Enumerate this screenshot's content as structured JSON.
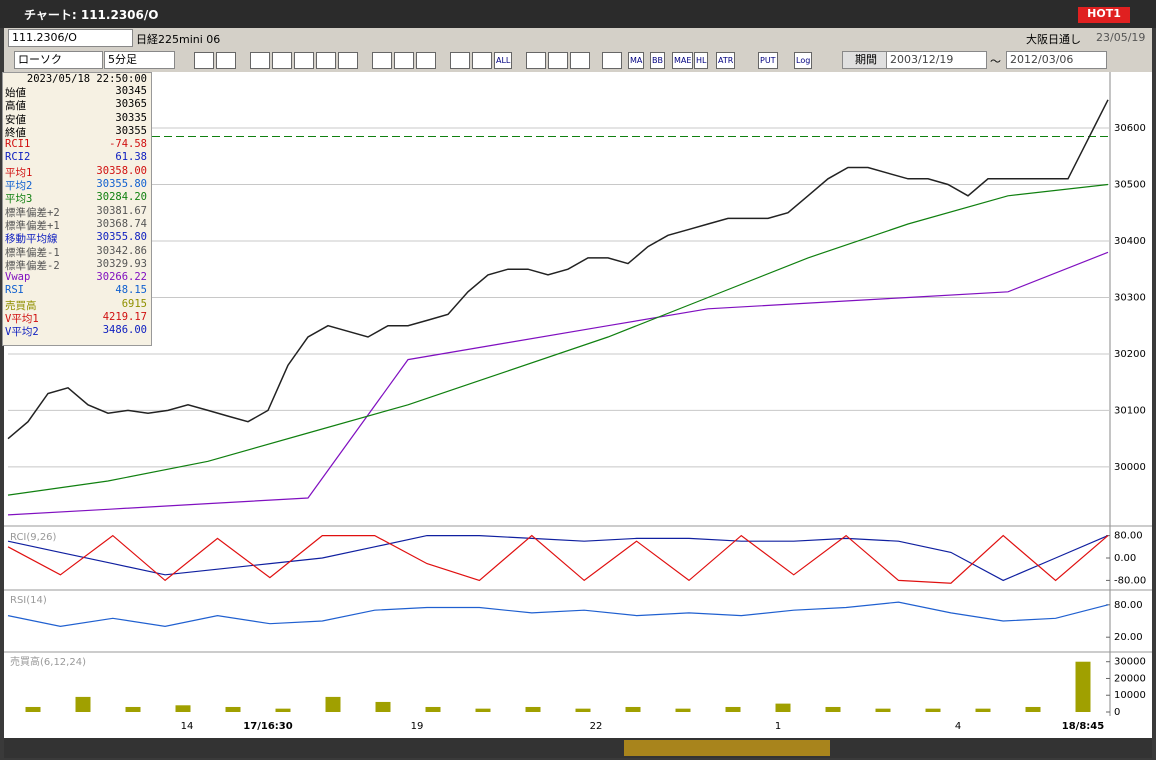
{
  "window": {
    "title": "チャート: 111.2306/O",
    "badge": "HOT1"
  },
  "toolbar": {
    "symbol": "111.2306/O",
    "name": "日経225mini 06",
    "market": "大阪日通し",
    "date": "23/05/19",
    "chart_type": "ローソク",
    "interval": "5分足",
    "icon_labels": [
      "ALL",
      "MA",
      "BB",
      "MAE",
      "HL",
      "ATR",
      "PUT",
      "Log"
    ],
    "period": "期間",
    "from": "2003/12/19",
    "tilde": "〜",
    "to": "2012/03/06"
  },
  "info": {
    "datetime": "2023/05/18  22:50:00",
    "rows": [
      {
        "label": "始値",
        "value": "30345",
        "color": "#000000"
      },
      {
        "label": "高値",
        "value": "30365",
        "color": "#000000"
      },
      {
        "label": "安値",
        "value": "30335",
        "color": "#000000"
      },
      {
        "label": "終値",
        "value": "30355",
        "color": "#000000"
      },
      {
        "label": "RCI1",
        "value": "-74.58",
        "color": "#d01010"
      },
      {
        "label": "RCI2",
        "value": "61.38",
        "color": "#1020c0"
      },
      {
        "label": "平均1",
        "value": "30358.00",
        "color": "#d01010"
      },
      {
        "label": "平均2",
        "value": "30355.80",
        "color": "#1060d0"
      },
      {
        "label": "平均3",
        "value": "30284.20",
        "color": "#108010"
      },
      {
        "label": "標準偏差+2",
        "value": "30381.67",
        "color": "#555555"
      },
      {
        "label": "標準偏差+1",
        "value": "30368.74",
        "color": "#555555"
      },
      {
        "label": "移動平均線",
        "value": "30355.80",
        "color": "#1020c0"
      },
      {
        "label": "標準偏差-1",
        "value": "30342.86",
        "color": "#555555"
      },
      {
        "label": "標準偏差-2",
        "value": "30329.93",
        "color": "#555555"
      },
      {
        "label": "Vwap",
        "value": "30266.22",
        "color": "#8010c0"
      },
      {
        "label": "RSI",
        "value": "48.15",
        "color": "#1060d0"
      },
      {
        "label": "売買高",
        "value": "6915",
        "color": "#909000"
      },
      {
        "label": "V平均1",
        "value": "4219.17",
        "color": "#d01010"
      },
      {
        "label": "V平均2",
        "value": "3486.00",
        "color": "#1020c0"
      }
    ]
  },
  "price_pane": {
    "ylim": [
      29906,
      30685
    ],
    "yticks": [
      30000,
      30100,
      30200,
      30300,
      30400,
      30500,
      30600
    ],
    "close": [
      30050,
      30080,
      30130,
      30140,
      30110,
      30095,
      30100,
      30095,
      30100,
      30110,
      30100,
      30090,
      30080,
      30100,
      30180,
      30230,
      30250,
      30240,
      30230,
      30250,
      30250,
      30260,
      30270,
      30310,
      30340,
      30350,
      30350,
      30340,
      30350,
      30370,
      30370,
      30360,
      30390,
      30410,
      30420,
      30430,
      30440,
      30440,
      30440,
      30450,
      30480,
      30510,
      30530,
      30530,
      30520,
      30510,
      30510,
      30500,
      30480,
      30510,
      30510,
      30510,
      30510,
      30510,
      30580,
      30650
    ],
    "long_ma": [
      29950,
      29975,
      30010,
      30060,
      30110,
      30170,
      30230,
      30300,
      30370,
      30430,
      30480,
      30500
    ],
    "vwap": [
      29915,
      29925,
      29935,
      29945,
      30190,
      30220,
      30250,
      30280,
      30290,
      30300,
      30310,
      30380
    ],
    "reference": 30585,
    "close_color": "#222222",
    "long_ma_color": "#108010",
    "vwap_color": "#8010c0",
    "reference_color": "#108010"
  },
  "rci_pane": {
    "label": "RCI(9,26)",
    "ylim": [
      -100,
      100
    ],
    "yticks": [
      {
        "value": 80,
        "label": "80.00"
      },
      {
        "value": 0,
        "label": "0.00"
      },
      {
        "value": -80,
        "label": "-80.00"
      }
    ],
    "fast": [
      40,
      -60,
      80,
      -80,
      70,
      -70,
      80,
      80,
      -20,
      -80,
      80,
      -80,
      60,
      -80,
      80,
      -60,
      80,
      -80,
      -90,
      80,
      -80,
      80
    ],
    "slow": [
      60,
      20,
      -20,
      -60,
      -40,
      -20,
      0,
      40,
      80,
      80,
      70,
      60,
      70,
      70,
      60,
      60,
      70,
      60,
      20,
      -80,
      0,
      80
    ],
    "fast_color": "#e01010",
    "slow_color": "#1020a0"
  },
  "rsi_pane": {
    "label": "RSI(14)",
    "ylim": [
      0,
      100
    ],
    "yticks": [
      {
        "value": 80,
        "label": "80.00"
      },
      {
        "value": 20,
        "label": "20.00"
      }
    ],
    "values": [
      60,
      40,
      55,
      40,
      60,
      45,
      50,
      70,
      75,
      75,
      65,
      70,
      60,
      65,
      60,
      70,
      75,
      85,
      65,
      50,
      55,
      80
    ],
    "color": "#2060d0"
  },
  "volume_pane": {
    "label": "売買高(6,12,24)",
    "ylim": [
      0,
      34000
    ],
    "yticks": [
      0,
      10000,
      20000,
      30000
    ],
    "values": [
      3000,
      9000,
      3000,
      4000,
      3000,
      2000,
      9000,
      6000,
      3000,
      2000,
      3000,
      2000,
      3000,
      2000,
      3000,
      5000,
      3000,
      2000,
      2000,
      2000,
      3000,
      30000
    ],
    "color": "#a0a000"
  },
  "x_axis": {
    "labels": [
      "14",
      "17/16:30",
      "19",
      "22",
      "1",
      "4",
      "18/8:45"
    ]
  }
}
